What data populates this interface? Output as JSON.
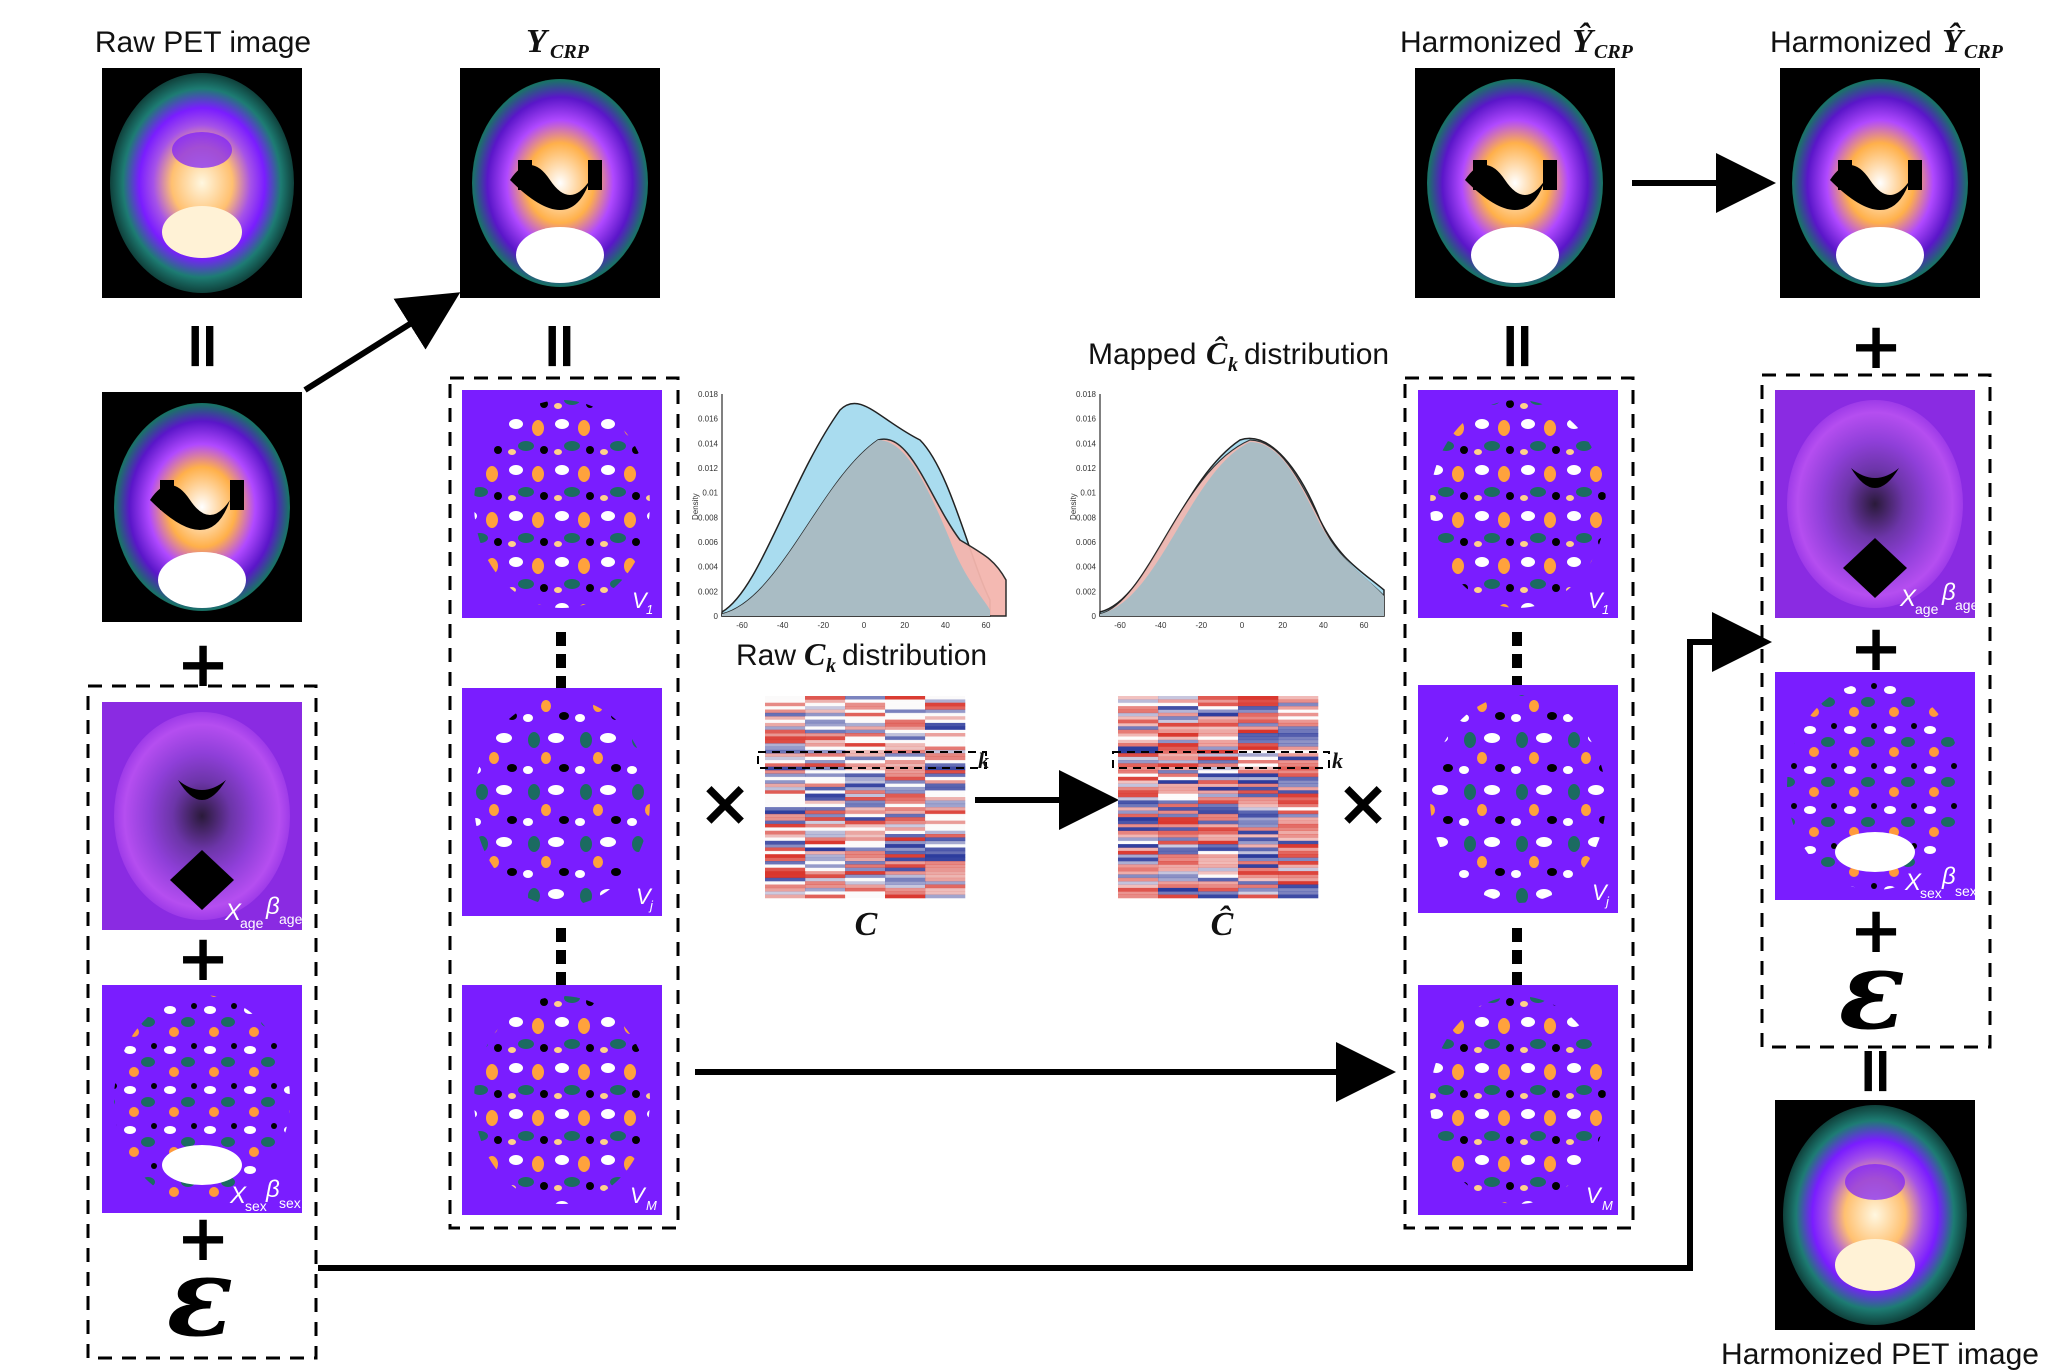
{
  "labels": {
    "raw_pet": "Raw PET image",
    "y_crp": "Y",
    "y_crp_sub": "CRP",
    "harmonized_prefix": "Harmonized",
    "harmonized_y": "Ŷ",
    "harmonized_sub": "CRP",
    "harmonized_pet": "Harmonized PET image",
    "raw_ck_prefix": "Raw",
    "raw_ck_c": "C",
    "raw_ck_k": "k",
    "raw_ck_suffix": "distribution",
    "mapped_prefix": "Mapped",
    "mapped_c": "Ĉ",
    "mapped_k": "k",
    "mapped_suffix": "distribution",
    "matrix_c": "C",
    "matrix_chat": "Ĉ",
    "row_k": "k"
  },
  "symbols": {
    "equals": "=",
    "plus": "+",
    "times": "×",
    "epsilon": "ε"
  },
  "components": {
    "x": "X",
    "beta": "β",
    "age": "age",
    "sex": "sex",
    "v": "V",
    "v1": "1",
    "vj": "j",
    "vm": "M"
  },
  "density_axis": {
    "ylabel": "Density",
    "yticks": [
      "0.018",
      "0.016",
      "0.014",
      "0.012",
      "0.01",
      "0.008",
      "0.006",
      "0.004",
      "0.002",
      "0"
    ],
    "xticks": [
      "-60",
      "-40",
      "-20",
      "0",
      "20",
      "40",
      "60"
    ]
  },
  "colors": {
    "pet_green": "#1f7a6e",
    "pet_purple": "#7a1dff",
    "pet_orange": "#ff9a3c",
    "blue_density": "#a9dcef",
    "red_density": "#f4b6ae",
    "overlap": "#a9bcc4",
    "matrix_red": "#d9342b",
    "matrix_blue": "#2b3a9c"
  }
}
